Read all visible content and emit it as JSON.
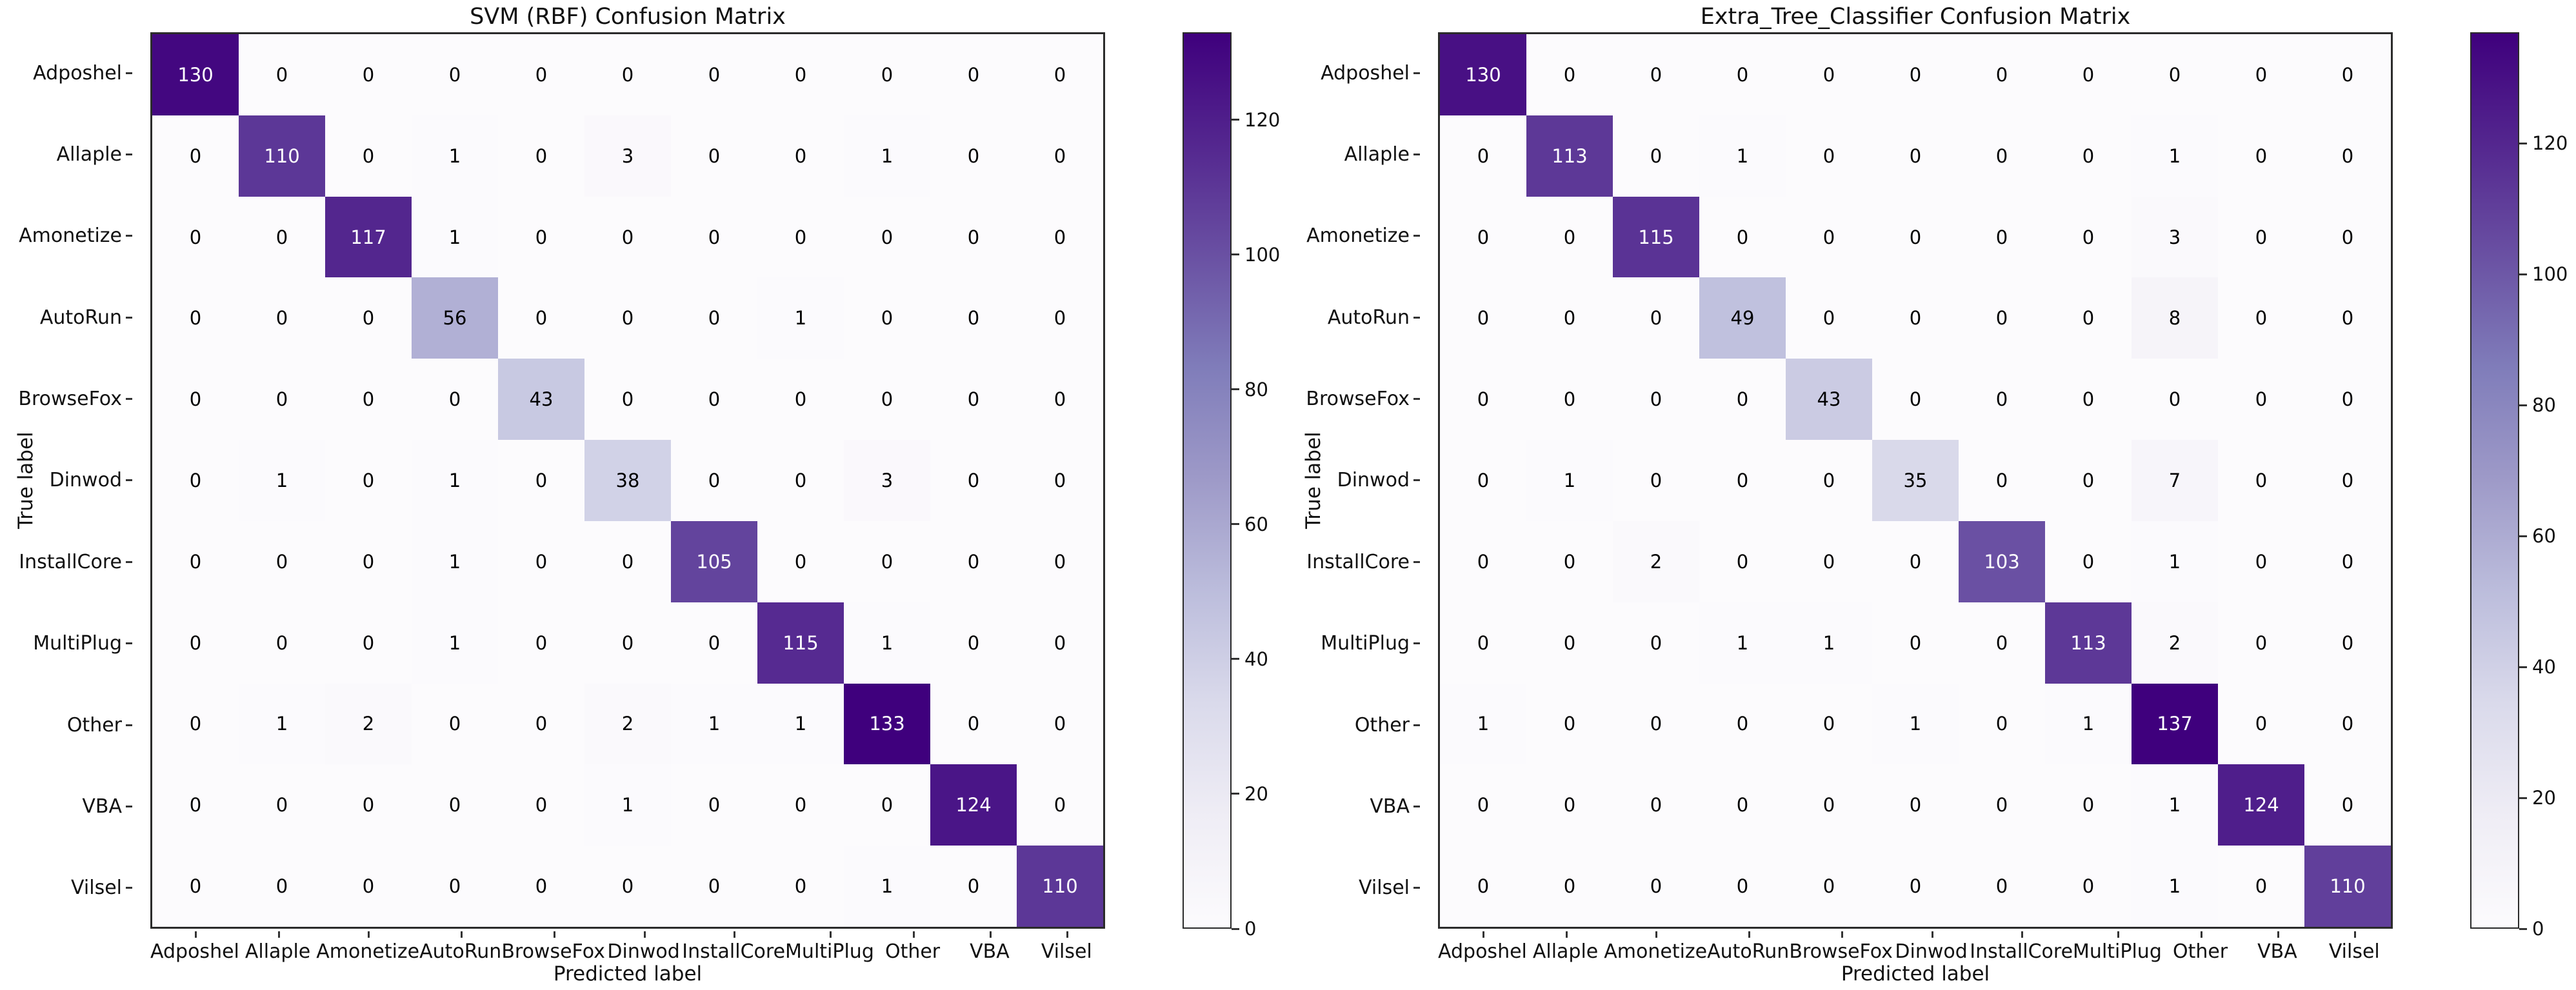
{
  "figure": {
    "background": "#ffffff"
  },
  "chart_data": [
    {
      "type": "heatmap",
      "title": "SVM (RBF) Confusion Matrix",
      "xlabel": "Predicted label",
      "ylabel": "True label",
      "categories": [
        "Adposhel",
        "Allaple",
        "Amonetize",
        "AutoRun",
        "BrowseFox",
        "Dinwod",
        "InstallCore",
        "MultiPlug",
        "Other",
        "VBA",
        "Vilsel"
      ],
      "matrix": [
        [
          130,
          0,
          0,
          0,
          0,
          0,
          0,
          0,
          0,
          0,
          0
        ],
        [
          0,
          110,
          0,
          1,
          0,
          3,
          0,
          0,
          1,
          0,
          0
        ],
        [
          0,
          0,
          117,
          1,
          0,
          0,
          0,
          0,
          0,
          0,
          0
        ],
        [
          0,
          0,
          0,
          56,
          0,
          0,
          0,
          1,
          0,
          0,
          0
        ],
        [
          0,
          0,
          0,
          0,
          43,
          0,
          0,
          0,
          0,
          0,
          0
        ],
        [
          0,
          1,
          0,
          1,
          0,
          38,
          0,
          0,
          3,
          0,
          0
        ],
        [
          0,
          0,
          0,
          1,
          0,
          0,
          105,
          0,
          0,
          0,
          0
        ],
        [
          0,
          0,
          0,
          1,
          0,
          0,
          0,
          115,
          1,
          0,
          0
        ],
        [
          0,
          1,
          2,
          0,
          0,
          2,
          1,
          1,
          133,
          0,
          0
        ],
        [
          0,
          0,
          0,
          0,
          0,
          1,
          0,
          0,
          0,
          124,
          0
        ],
        [
          0,
          0,
          0,
          0,
          0,
          0,
          0,
          0,
          1,
          0,
          110
        ]
      ],
      "vmin": 0,
      "vmax": 133,
      "colorbar_ticks": [
        0,
        20,
        40,
        60,
        80,
        100,
        120
      ],
      "colormap": "Purples",
      "colormap_colors": [
        "#fcfbfd",
        "#efedf5",
        "#dadaeb",
        "#bcbddc",
        "#9e9ac8",
        "#807dba",
        "#6a51a3",
        "#54278f",
        "#3f007d"
      ],
      "cell_text_color_light": "#000000",
      "cell_text_color_dark": "#ffffff"
    },
    {
      "type": "heatmap",
      "title": "Extra_Tree_Classifier Confusion Matrix",
      "xlabel": "Predicted label",
      "ylabel": "True label",
      "categories": [
        "Adposhel",
        "Allaple",
        "Amonetize",
        "AutoRun",
        "BrowseFox",
        "Dinwod",
        "InstallCore",
        "MultiPlug",
        "Other",
        "VBA",
        "Vilsel"
      ],
      "matrix": [
        [
          130,
          0,
          0,
          0,
          0,
          0,
          0,
          0,
          0,
          0,
          0
        ],
        [
          0,
          113,
          0,
          1,
          0,
          0,
          0,
          0,
          1,
          0,
          0
        ],
        [
          0,
          0,
          115,
          0,
          0,
          0,
          0,
          0,
          3,
          0,
          0
        ],
        [
          0,
          0,
          0,
          49,
          0,
          0,
          0,
          0,
          8,
          0,
          0
        ],
        [
          0,
          0,
          0,
          0,
          43,
          0,
          0,
          0,
          0,
          0,
          0
        ],
        [
          0,
          1,
          0,
          0,
          0,
          35,
          0,
          0,
          7,
          0,
          0
        ],
        [
          0,
          0,
          2,
          0,
          0,
          0,
          103,
          0,
          1,
          0,
          0
        ],
        [
          0,
          0,
          0,
          1,
          1,
          0,
          0,
          113,
          2,
          0,
          0
        ],
        [
          1,
          0,
          0,
          0,
          0,
          1,
          0,
          1,
          137,
          0,
          0
        ],
        [
          0,
          0,
          0,
          0,
          0,
          0,
          0,
          0,
          1,
          124,
          0
        ],
        [
          0,
          0,
          0,
          0,
          0,
          0,
          0,
          0,
          1,
          0,
          110
        ]
      ],
      "vmin": 0,
      "vmax": 137,
      "colorbar_ticks": [
        0,
        20,
        40,
        60,
        80,
        100,
        120
      ],
      "colormap": "Purples",
      "colormap_colors": [
        "#fcfbfd",
        "#efedf5",
        "#dadaeb",
        "#bcbddc",
        "#9e9ac8",
        "#807dba",
        "#6a51a3",
        "#54278f",
        "#3f007d"
      ],
      "cell_text_color_light": "#000000",
      "cell_text_color_dark": "#ffffff"
    }
  ]
}
